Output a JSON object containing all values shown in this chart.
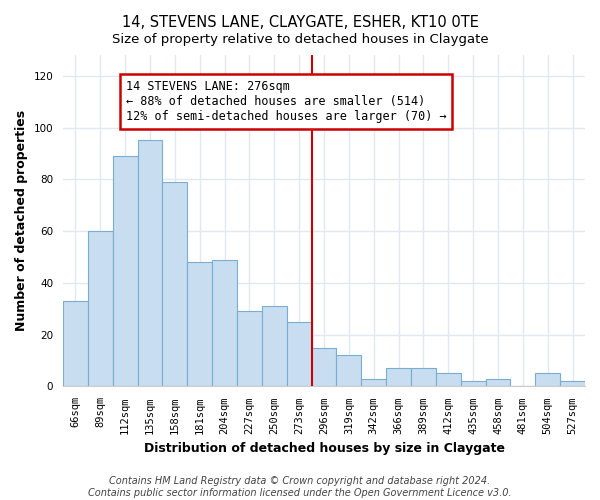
{
  "title": "14, STEVENS LANE, CLAYGATE, ESHER, KT10 0TE",
  "subtitle": "Size of property relative to detached houses in Claygate",
  "xlabel": "Distribution of detached houses by size in Claygate",
  "ylabel": "Number of detached properties",
  "bar_color": "#c8ddf0",
  "bar_edge_color": "#7aaed0",
  "categories": [
    "66sqm",
    "89sqm",
    "112sqm",
    "135sqm",
    "158sqm",
    "181sqm",
    "204sqm",
    "227sqm",
    "250sqm",
    "273sqm",
    "296sqm",
    "319sqm",
    "342sqm",
    "366sqm",
    "389sqm",
    "412sqm",
    "435sqm",
    "458sqm",
    "481sqm",
    "504sqm",
    "527sqm"
  ],
  "values": [
    33,
    60,
    89,
    95,
    79,
    48,
    49,
    29,
    31,
    25,
    15,
    12,
    3,
    7,
    7,
    5,
    2,
    3,
    0,
    5,
    2
  ],
  "ylim": [
    0,
    128
  ],
  "yticks": [
    0,
    20,
    40,
    60,
    80,
    100,
    120
  ],
  "annotation_text": "14 STEVENS LANE: 276sqm\n← 88% of detached houses are smaller (514)\n12% of semi-detached houses are larger (70) →",
  "vline_x_index": 9.5,
  "vline_color": "#cc0000",
  "annotation_box_facecolor": "#ffffff",
  "annotation_box_edgecolor": "#cc0000",
  "footer_line1": "Contains HM Land Registry data © Crown copyright and database right 2024.",
  "footer_line2": "Contains public sector information licensed under the Open Government Licence v3.0.",
  "background_color": "#ffffff",
  "plot_background_color": "#ffffff",
  "grid_color": "#e0e8f0",
  "title_fontsize": 10.5,
  "subtitle_fontsize": 9.5,
  "axis_label_fontsize": 9,
  "tick_fontsize": 7.5,
  "footer_fontsize": 7,
  "annotation_fontsize": 8.5
}
